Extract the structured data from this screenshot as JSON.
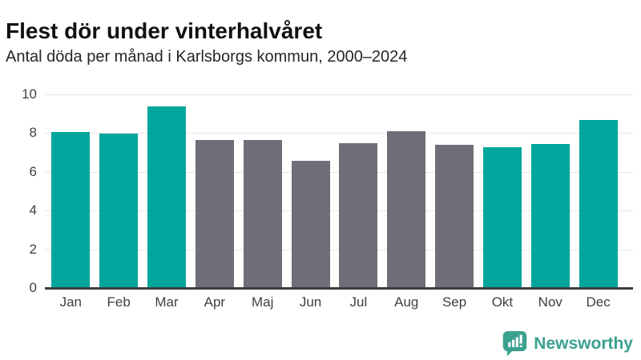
{
  "header": {
    "title": "Flest dör under vinterhalvåret",
    "subtitle": "Antal döda per månad i Karlsborgs kommun, 2000–2024"
  },
  "chart_data": {
    "type": "bar",
    "title": "Flest dör under vinterhalvåret",
    "subtitle": "Antal döda per månad i Karlsborgs kommun, 2000–2024",
    "categories": [
      "Jan",
      "Feb",
      "Mar",
      "Apr",
      "Maj",
      "Jun",
      "Jul",
      "Aug",
      "Sep",
      "Okt",
      "Nov",
      "Dec"
    ],
    "values": [
      8.0,
      7.95,
      9.35,
      7.6,
      7.6,
      6.55,
      7.45,
      8.05,
      7.35,
      7.25,
      7.4,
      8.65
    ],
    "color_keys": [
      "winter",
      "winter",
      "winter",
      "summer",
      "summer",
      "summer",
      "summer",
      "summer",
      "summer",
      "winter",
      "winter",
      "winter"
    ],
    "palette": {
      "winter": "#00a69c",
      "summer": "#6f6e78"
    },
    "xlabel": "",
    "ylabel": "",
    "ylim": [
      0,
      10
    ],
    "yticks": [
      0,
      2,
      4,
      6,
      8,
      10
    ],
    "grid": true,
    "legend": "none",
    "axis_color": "#3d3d3d",
    "grid_color": "#e7e7e7",
    "tick_label_color": "#3f3f3f"
  },
  "branding": {
    "logo_text": "Newsworthy",
    "logo_color": "#3ba18f",
    "logo_icon": "bar-chart-speech-bubble-icon"
  }
}
